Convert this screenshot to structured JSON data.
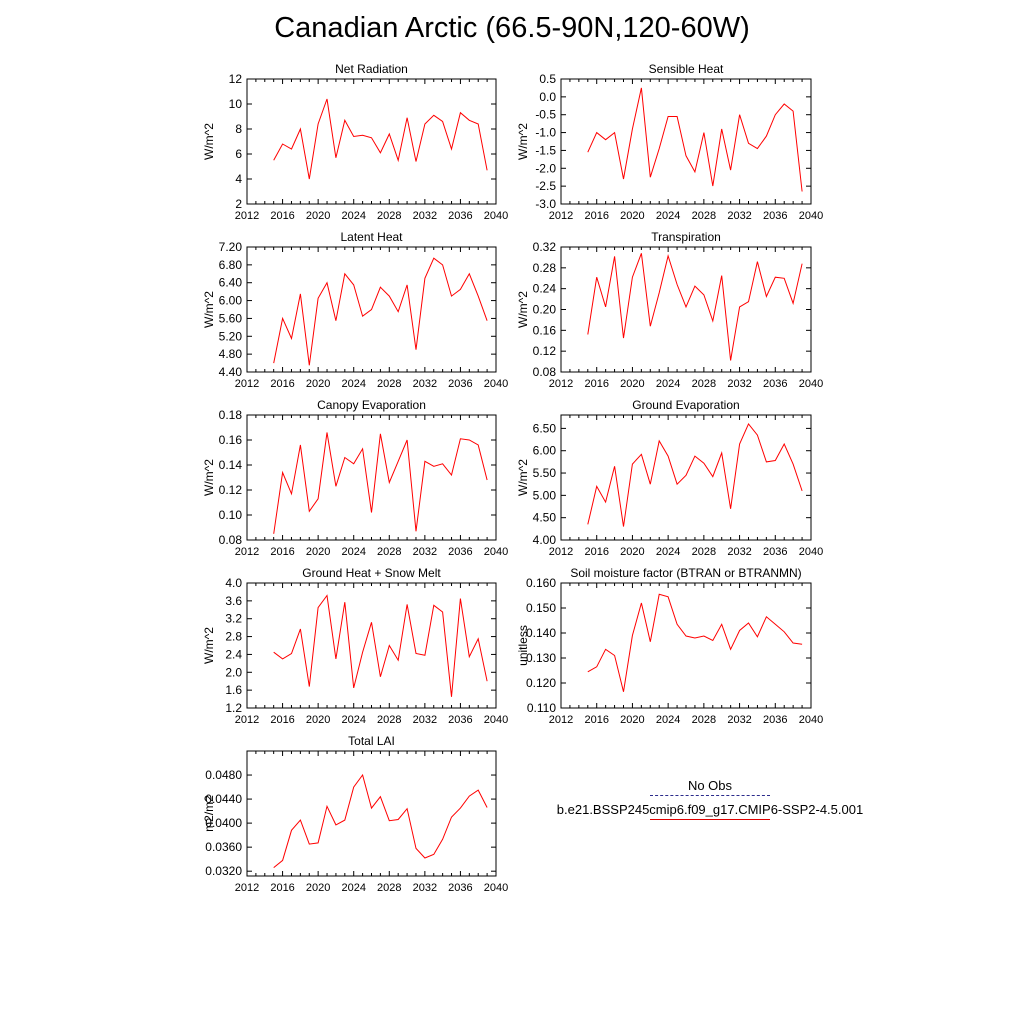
{
  "title": "Canadian Arctic (66.5-90N,120-60W)",
  "colors": {
    "model": "#ff0000",
    "obs": "#2b2b8c",
    "axis": "#000000"
  },
  "legend": {
    "obs_label": "No Obs",
    "model_label": "b.e21.BSSP245cmip6.f09_g17.CMIP6-SSP2-4.5.001"
  },
  "chart_data": [
    {
      "type": "line",
      "title": "Net Radiation",
      "ylabel": "W/m^2",
      "xlim": [
        2012,
        2040
      ],
      "xticks": [
        "2012",
        "2016",
        "2020",
        "2024",
        "2028",
        "2032",
        "2036",
        "2040"
      ],
      "ylim": [
        2,
        12
      ],
      "yticks": [
        "2",
        "4",
        "6",
        "8",
        "10",
        "12"
      ],
      "x": [
        2015,
        2016,
        2017,
        2018,
        2019,
        2020,
        2021,
        2022,
        2023,
        2024,
        2025,
        2026,
        2027,
        2028,
        2029,
        2030,
        2031,
        2032,
        2033,
        2034,
        2035,
        2036,
        2037,
        2038,
        2039
      ],
      "series": [
        {
          "values": [
            5.5,
            6.8,
            6.4,
            8.0,
            4.0,
            8.4,
            10.4,
            5.7,
            8.7,
            7.4,
            7.5,
            7.3,
            6.1,
            7.6,
            5.5,
            8.9,
            5.4,
            8.4,
            9.1,
            8.6,
            6.4,
            9.3,
            8.7,
            8.4,
            4.7
          ]
        }
      ]
    },
    {
      "type": "line",
      "title": "Sensible Heat",
      "ylabel": "W/m^2",
      "xlim": [
        2012,
        2040
      ],
      "xticks": [
        "2012",
        "2016",
        "2020",
        "2024",
        "2028",
        "2032",
        "2036",
        "2040"
      ],
      "ylim": [
        -3.0,
        0.5
      ],
      "yticks": [
        "-3.0",
        "-2.5",
        "-2.0",
        "-1.5",
        "-1.0",
        "-0.5",
        "0.0",
        "0.5"
      ],
      "x": [
        2015,
        2016,
        2017,
        2018,
        2019,
        2020,
        2021,
        2022,
        2023,
        2024,
        2025,
        2026,
        2027,
        2028,
        2029,
        2030,
        2031,
        2032,
        2033,
        2034,
        2035,
        2036,
        2037,
        2038,
        2039
      ],
      "series": [
        {
          "values": [
            -1.55,
            -1.0,
            -1.2,
            -1.0,
            -2.3,
            -0.9,
            0.25,
            -2.25,
            -1.45,
            -0.55,
            -0.55,
            -1.65,
            -2.1,
            -1.0,
            -2.5,
            -0.9,
            -2.05,
            -0.5,
            -1.3,
            -1.45,
            -1.1,
            -0.5,
            -0.2,
            -0.4,
            -2.65
          ]
        }
      ]
    },
    {
      "type": "line",
      "title": "Latent Heat",
      "ylabel": "W/m^2",
      "xlim": [
        2012,
        2040
      ],
      "xticks": [
        "2012",
        "2016",
        "2020",
        "2024",
        "2028",
        "2032",
        "2036",
        "2040"
      ],
      "ylim": [
        4.4,
        7.2
      ],
      "yticks": [
        "4.40",
        "4.80",
        "5.20",
        "5.60",
        "6.00",
        "6.40",
        "6.80",
        "7.20"
      ],
      "x": [
        2015,
        2016,
        2017,
        2018,
        2019,
        2020,
        2021,
        2022,
        2023,
        2024,
        2025,
        2026,
        2027,
        2028,
        2029,
        2030,
        2031,
        2032,
        2033,
        2034,
        2035,
        2036,
        2037,
        2038,
        2039
      ],
      "series": [
        {
          "values": [
            4.6,
            5.6,
            5.15,
            6.15,
            4.55,
            6.05,
            6.4,
            5.55,
            6.6,
            6.35,
            5.65,
            5.8,
            6.3,
            6.1,
            5.75,
            6.35,
            4.9,
            6.5,
            6.95,
            6.8,
            6.1,
            6.25,
            6.6,
            6.1,
            5.55
          ]
        }
      ]
    },
    {
      "type": "line",
      "title": "Transpiration",
      "ylabel": "W/m^2",
      "xlim": [
        2012,
        2040
      ],
      "xticks": [
        "2012",
        "2016",
        "2020",
        "2024",
        "2028",
        "2032",
        "2036",
        "2040"
      ],
      "ylim": [
        0.08,
        0.32
      ],
      "yticks": [
        "0.08",
        "0.12",
        "0.16",
        "0.20",
        "0.24",
        "0.28",
        "0.32"
      ],
      "x": [
        2015,
        2016,
        2017,
        2018,
        2019,
        2020,
        2021,
        2022,
        2023,
        2024,
        2025,
        2026,
        2027,
        2028,
        2029,
        2030,
        2031,
        2032,
        2033,
        2034,
        2035,
        2036,
        2037,
        2038,
        2039
      ],
      "series": [
        {
          "values": [
            0.152,
            0.262,
            0.205,
            0.302,
            0.145,
            0.262,
            0.308,
            0.168,
            0.232,
            0.303,
            0.248,
            0.205,
            0.245,
            0.228,
            0.178,
            0.265,
            0.102,
            0.205,
            0.215,
            0.292,
            0.225,
            0.262,
            0.26,
            0.212,
            0.288
          ]
        }
      ]
    },
    {
      "type": "line",
      "title": "Canopy Evaporation",
      "ylabel": "W/m^2",
      "xlim": [
        2012,
        2040
      ],
      "xticks": [
        "2012",
        "2016",
        "2020",
        "2024",
        "2028",
        "2032",
        "2036",
        "2040"
      ],
      "ylim": [
        0.08,
        0.18
      ],
      "yticks": [
        "0.08",
        "0.10",
        "0.12",
        "0.14",
        "0.16",
        "0.18"
      ],
      "x": [
        2015,
        2016,
        2017,
        2018,
        2019,
        2020,
        2021,
        2022,
        2023,
        2024,
        2025,
        2026,
        2027,
        2028,
        2029,
        2030,
        2031,
        2032,
        2033,
        2034,
        2035,
        2036,
        2037,
        2038,
        2039
      ],
      "series": [
        {
          "values": [
            0.085,
            0.134,
            0.117,
            0.156,
            0.103,
            0.113,
            0.166,
            0.123,
            0.146,
            0.141,
            0.153,
            0.102,
            0.165,
            0.126,
            0.143,
            0.16,
            0.087,
            0.143,
            0.139,
            0.141,
            0.132,
            0.161,
            0.16,
            0.156,
            0.128
          ]
        }
      ]
    },
    {
      "type": "line",
      "title": "Ground Evaporation",
      "ylabel": "W/m^2",
      "xlim": [
        2012,
        2040
      ],
      "xticks": [
        "2012",
        "2016",
        "2020",
        "2024",
        "2028",
        "2032",
        "2036",
        "2040"
      ],
      "ylim": [
        4.0,
        6.8
      ],
      "yticks": [
        "4.00",
        "4.50",
        "5.00",
        "5.50",
        "6.00",
        "6.50"
      ],
      "x": [
        2015,
        2016,
        2017,
        2018,
        2019,
        2020,
        2021,
        2022,
        2023,
        2024,
        2025,
        2026,
        2027,
        2028,
        2029,
        2030,
        2031,
        2032,
        2033,
        2034,
        2035,
        2036,
        2037,
        2038,
        2039
      ],
      "series": [
        {
          "values": [
            4.35,
            5.2,
            4.85,
            5.65,
            4.3,
            5.7,
            5.92,
            5.25,
            6.22,
            5.88,
            5.25,
            5.45,
            5.88,
            5.72,
            5.42,
            5.95,
            4.7,
            6.15,
            6.6,
            6.35,
            5.75,
            5.78,
            6.15,
            5.7,
            5.1
          ]
        }
      ]
    },
    {
      "type": "line",
      "title": "Ground Heat + Snow Melt",
      "ylabel": "W/m^2",
      "xlim": [
        2012,
        2040
      ],
      "xticks": [
        "2012",
        "2016",
        "2020",
        "2024",
        "2028",
        "2032",
        "2036",
        "2040"
      ],
      "ylim": [
        1.2,
        4.0
      ],
      "yticks": [
        "1.2",
        "1.6",
        "2.0",
        "2.4",
        "2.8",
        "3.2",
        "3.6",
        "4.0"
      ],
      "x": [
        2015,
        2016,
        2017,
        2018,
        2019,
        2020,
        2021,
        2022,
        2023,
        2024,
        2025,
        2026,
        2027,
        2028,
        2029,
        2030,
        2031,
        2032,
        2033,
        2034,
        2035,
        2036,
        2037,
        2038,
        2039
      ],
      "series": [
        {
          "values": [
            2.45,
            2.3,
            2.42,
            2.97,
            1.68,
            3.45,
            3.72,
            2.3,
            3.57,
            1.65,
            2.45,
            3.12,
            1.9,
            2.6,
            2.27,
            3.52,
            2.42,
            2.38,
            3.5,
            3.35,
            1.45,
            3.65,
            2.35,
            2.75,
            1.8
          ]
        }
      ]
    },
    {
      "type": "line",
      "title": "Soil moisture factor (BTRAN or BTRANMN)",
      "ylabel": "unitless",
      "xlim": [
        2012,
        2040
      ],
      "xticks": [
        "2012",
        "2016",
        "2020",
        "2024",
        "2028",
        "2032",
        "2036",
        "2040"
      ],
      "ylim": [
        0.11,
        0.16
      ],
      "yticks": [
        "0.110",
        "0.120",
        "0.130",
        "0.140",
        "0.150",
        "0.160"
      ],
      "x": [
        2015,
        2016,
        2017,
        2018,
        2019,
        2020,
        2021,
        2022,
        2023,
        2024,
        2025,
        2026,
        2027,
        2028,
        2029,
        2030,
        2031,
        2032,
        2033,
        2034,
        2035,
        2036,
        2037,
        2038,
        2039
      ],
      "series": [
        {
          "values": [
            0.1245,
            0.1265,
            0.1335,
            0.131,
            0.1165,
            0.139,
            0.152,
            0.1365,
            0.1555,
            0.1545,
            0.1435,
            0.1388,
            0.138,
            0.1388,
            0.137,
            0.1435,
            0.1335,
            0.141,
            0.144,
            0.1385,
            0.1465,
            0.1435,
            0.1405,
            0.136,
            0.1355
          ]
        }
      ]
    },
    {
      "type": "line",
      "title": "Total LAI",
      "ylabel": "m2/m2",
      "xlim": [
        2012,
        2040
      ],
      "xticks": [
        "2012",
        "2016",
        "2020",
        "2024",
        "2028",
        "2032",
        "2036",
        "2040"
      ],
      "ylim": [
        0.0312,
        0.052
      ],
      "yticks": [
        "0.0320",
        "0.0360",
        "0.0400",
        "0.0440",
        "0.0480"
      ],
      "x": [
        2015,
        2016,
        2017,
        2018,
        2019,
        2020,
        2021,
        2022,
        2023,
        2024,
        2025,
        2026,
        2027,
        2028,
        2029,
        2030,
        2031,
        2032,
        2033,
        2034,
        2035,
        2036,
        2037,
        2038,
        2039
      ],
      "series": [
        {
          "values": [
            0.0326,
            0.0338,
            0.0388,
            0.0405,
            0.0365,
            0.0367,
            0.0428,
            0.0397,
            0.0405,
            0.046,
            0.048,
            0.0425,
            0.0444,
            0.0404,
            0.0406,
            0.0424,
            0.0358,
            0.0342,
            0.0348,
            0.0373,
            0.041,
            0.0425,
            0.0445,
            0.0455,
            0.0426
          ]
        }
      ]
    }
  ]
}
